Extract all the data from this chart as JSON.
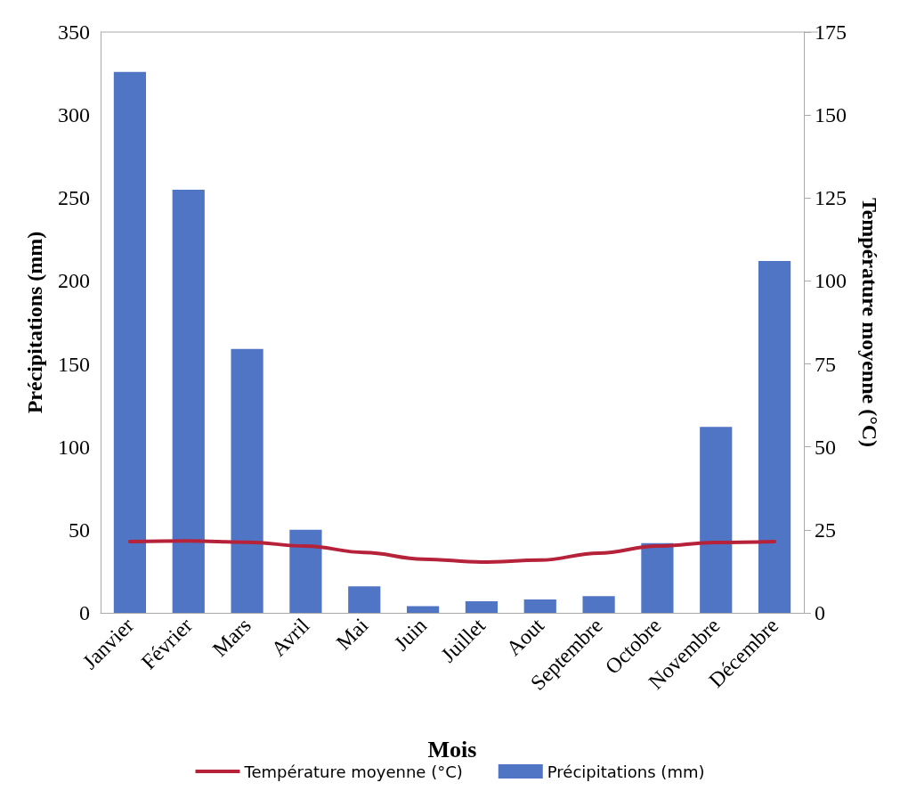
{
  "chart_data": {
    "type": "bar",
    "xlabel": "Mois",
    "ylabel": "Précipitations (mm)",
    "y2label": "Température moyenne (°C)",
    "categories": [
      "Janvier",
      "Février",
      "Mars",
      "Avril",
      "Mai",
      "Juin",
      "Juillet",
      "Aout",
      "Septembre",
      "Octobre",
      "Novembre",
      "Décembre"
    ],
    "series": [
      {
        "name": "Température moyenne (°C)",
        "type": "line",
        "axis": "y2",
        "color": "#b5223a",
        "values": [
          21.5,
          21.7,
          21.3,
          20.1,
          18.2,
          16.2,
          15.3,
          15.9,
          18.0,
          20.1,
          21.2,
          21.5
        ]
      },
      {
        "name": "Précipitations (mm)",
        "color": "#5075c5",
        "values": [
          326,
          255,
          159,
          50,
          16,
          4,
          7,
          8,
          10,
          42,
          112,
          212
        ]
      }
    ],
    "ylim": [
      0,
      350
    ],
    "yticks": [
      0,
      50,
      100,
      150,
      200,
      250,
      300,
      350
    ],
    "y2lim": [
      0,
      175
    ],
    "y2ticks": [
      0,
      25,
      50,
      75,
      100,
      125,
      150,
      175
    ],
    "legend": "bottom",
    "grid": false,
    "marker": "none",
    "line_style": "solid"
  }
}
